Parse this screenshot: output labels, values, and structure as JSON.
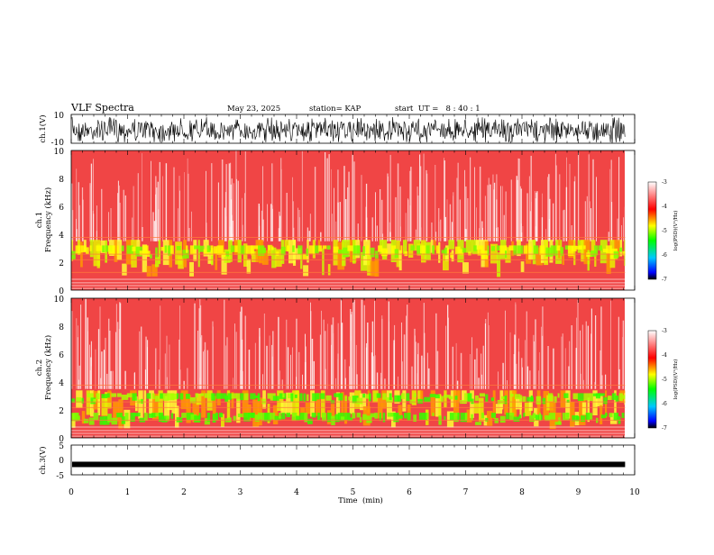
{
  "header": {
    "title": "VLF Spectra",
    "date": "May 23, 2025",
    "station": "station= KAP",
    "start": "start  UT =   8 : 40 : 1"
  },
  "chart_data": [
    {
      "type": "line",
      "panel": "ch1-waveform",
      "ylabel": "ch.1(V)",
      "ylim": [
        -10,
        10
      ],
      "yticks": [
        "10",
        "-10"
      ],
      "xlim": [
        0,
        10
      ]
    },
    {
      "type": "heatmap",
      "panel": "ch1-spectrogram",
      "ylabel_top": "ch.1",
      "ylabel": "Frequency  (kHz)",
      "ylim": [
        0,
        10
      ],
      "yticks": [
        "0",
        "2",
        "4",
        "6",
        "8",
        "10"
      ],
      "colorbar": {
        "label": "log(PSD)(V²/Hz)",
        "range": [
          -7,
          -3
        ],
        "ticks": [
          "-3",
          "-4",
          "-5",
          "-6",
          "-7"
        ]
      }
    },
    {
      "type": "heatmap",
      "panel": "ch2-spectrogram",
      "ylabel_top": "ch.2",
      "ylabel": "Frequency  (kHz)",
      "ylim": [
        0,
        10
      ],
      "yticks": [
        "0",
        "2",
        "4",
        "6",
        "8",
        "10"
      ],
      "colorbar": {
        "label": "log(PSD)(V²/Hz)",
        "range": [
          -7,
          -3
        ],
        "ticks": [
          "-3",
          "-4",
          "-5",
          "-6",
          "-7"
        ]
      }
    },
    {
      "type": "line",
      "panel": "ch3-waveform",
      "ylabel": "ch.3(V)",
      "ylim": [
        -5,
        5
      ],
      "yticks": [
        "5",
        "0",
        "-5"
      ],
      "value": -1.5
    }
  ],
  "xaxis": {
    "label": "Time  (min)",
    "xlim": [
      0,
      10
    ],
    "ticks": [
      "0",
      "1",
      "2",
      "3",
      "4",
      "5",
      "6",
      "7",
      "8",
      "9",
      "10"
    ],
    "data_end": 9.83
  },
  "colors": {
    "trace": "#000000",
    "background": "#ffffff"
  }
}
